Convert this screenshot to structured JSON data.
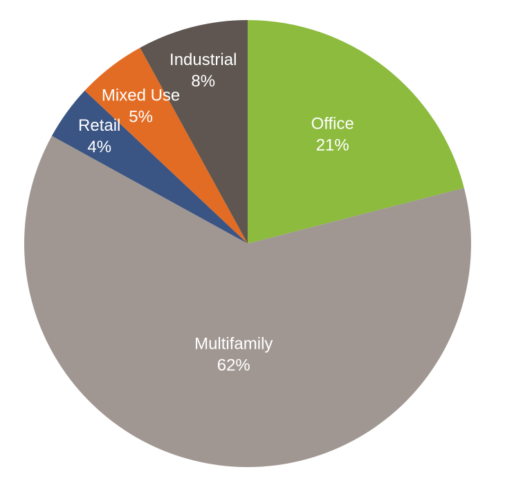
{
  "chart_data": {
    "type": "pie",
    "title": "",
    "start": "12 o'clock",
    "direction": "clockwise",
    "show_labels": true,
    "legend": "none",
    "slices": [
      {
        "name": "Office",
        "value": 21,
        "value_label": "21%",
        "color": "#8CBB3E"
      },
      {
        "name": "Multifamily",
        "value": 62,
        "value_label": "62%",
        "color": "#A09793"
      },
      {
        "name": "Retail",
        "value": 4,
        "value_label": "4%",
        "color": "#3A5584"
      },
      {
        "name": "Mixed Use",
        "value": 5,
        "value_label": "5%",
        "color": "#E36C24"
      },
      {
        "name": "Industrial",
        "value": 8,
        "value_label": "8%",
        "color": "#5F5651"
      }
    ]
  }
}
